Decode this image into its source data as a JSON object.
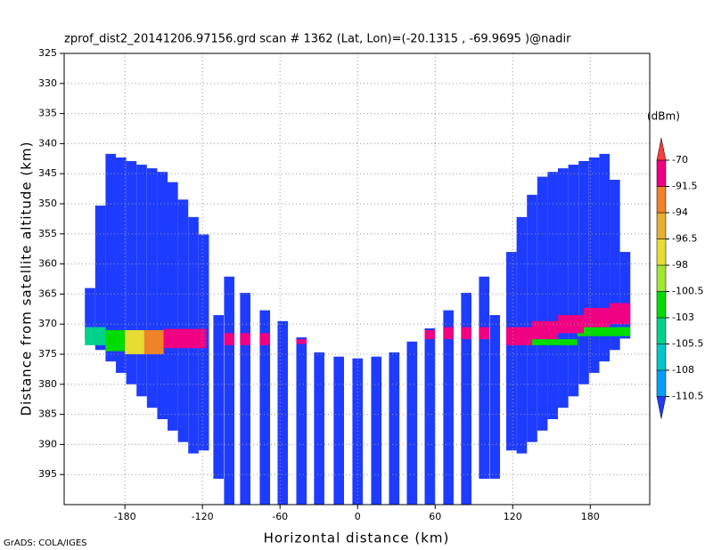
{
  "chart_data": {
    "type": "heatmap",
    "title": "zprof_dist2_20141206.97156.grd  scan # 1362  (Lat, Lon)=(-20.1315 , -69.9695 )@nadir",
    "x_label": "Horizontal distance (km)",
    "y_label": "Distance from satellite altitude (km)",
    "footer": "GrADS: COLA/IGES",
    "xlim": [
      -227,
      226
    ],
    "ylim": [
      400,
      325
    ],
    "xticks": [
      -180,
      -120,
      -60,
      0,
      60,
      120,
      180
    ],
    "yticks": [
      325,
      330,
      335,
      340,
      345,
      350,
      355,
      360,
      365,
      370,
      375,
      380,
      385,
      390,
      395
    ],
    "grid": true,
    "colorbar": {
      "label": "(dBm)",
      "levels": [
        -110.5,
        -108,
        -105.5,
        -103,
        -100.5,
        -98,
        -96.5,
        -94,
        -91.5,
        -70
      ],
      "colors": [
        "#1e3cff",
        "#00a0ff",
        "#00c8c8",
        "#00d28c",
        "#00dc00",
        "#a0e632",
        "#e6dc32",
        "#e6af2d",
        "#f08228",
        "#f00082",
        "#fa3c3c"
      ]
    },
    "columns": [
      {
        "x0": -211,
        "x1": -203,
        "top": 364,
        "bottom": 372.4,
        "value": -112
      },
      {
        "x0": -203,
        "x1": -195,
        "top": 350.3,
        "bottom": 374.3,
        "value": -112
      },
      {
        "x0": -195,
        "x1": -187,
        "top": 341.7,
        "bottom": 376.2,
        "value": -112
      },
      {
        "x0": -187,
        "x1": -179,
        "top": 342.3,
        "bottom": 378.1,
        "value": -112
      },
      {
        "x0": -179,
        "x1": -171,
        "top": 342.9,
        "bottom": 380,
        "value": -112
      },
      {
        "x0": -171,
        "x1": -163,
        "top": 343.5,
        "bottom": 382,
        "value": -112
      },
      {
        "x0": -163,
        "x1": -155,
        "top": 344.1,
        "bottom": 383.9,
        "value": -112
      },
      {
        "x0": -155,
        "x1": -147,
        "top": 344.7,
        "bottom": 385.8,
        "value": -112
      },
      {
        "x0": -147,
        "x1": -139,
        "top": 346.4,
        "bottom": 387.7,
        "value": -112
      },
      {
        "x0": -139,
        "x1": -131,
        "top": 349.3,
        "bottom": 389.6,
        "value": -112
      },
      {
        "x0": -131,
        "x1": -123,
        "top": 352.2,
        "bottom": 391.5,
        "value": -112
      },
      {
        "x0": -123,
        "x1": -115,
        "top": 355.1,
        "bottom": 391,
        "value": -112
      },
      {
        "x0": -111.6,
        "x1": -103.6,
        "top": 368.5,
        "bottom": 395.7,
        "value": -112
      },
      {
        "x0": -103.3,
        "x1": -95.3,
        "top": 362.1,
        "bottom": 400,
        "value": -112
      },
      {
        "x0": -90.9,
        "x1": -82.9,
        "top": 364.8,
        "bottom": 400,
        "value": -112
      },
      {
        "x0": -75.7,
        "x1": -67.7,
        "top": 367.7,
        "bottom": 400,
        "value": -112
      },
      {
        "x0": -61.9,
        "x1": -53.9,
        "top": 369.5,
        "bottom": 400,
        "value": -112
      },
      {
        "x0": -47.4,
        "x1": -39.4,
        "top": 372.2,
        "bottom": 400,
        "value": -112
      },
      {
        "x0": -33.7,
        "x1": -25.7,
        "top": 374.7,
        "bottom": 400,
        "value": -112
      },
      {
        "x0": -18.5,
        "x1": -10.5,
        "top": 375.4,
        "bottom": 400,
        "value": -112
      },
      {
        "x0": -4,
        "x1": 4,
        "top": 375.7,
        "bottom": 400,
        "value": -112
      },
      {
        "x0": 10.5,
        "x1": 18.5,
        "top": 375.4,
        "bottom": 400,
        "value": -112
      },
      {
        "x0": 24.3,
        "x1": 32.3,
        "top": 374.7,
        "bottom": 400,
        "value": -112
      },
      {
        "x0": 38.1,
        "x1": 46.1,
        "top": 372.9,
        "bottom": 400,
        "value": -112
      },
      {
        "x0": 51.9,
        "x1": 59.9,
        "top": 370.7,
        "bottom": 400,
        "value": -112
      },
      {
        "x0": 66.3,
        "x1": 74.3,
        "top": 367.7,
        "bottom": 400,
        "value": -112
      },
      {
        "x0": 80.1,
        "x1": 88.1,
        "top": 364.8,
        "bottom": 400,
        "value": -112
      },
      {
        "x0": 93.9,
        "x1": 101.9,
        "top": 362.1,
        "bottom": 395.7,
        "value": -112
      },
      {
        "x0": 102.2,
        "x1": 110.2,
        "top": 368.5,
        "bottom": 395.7,
        "value": -112
      },
      {
        "x0": 115,
        "x1": 123,
        "top": 358,
        "bottom": 391,
        "value": -112
      },
      {
        "x0": 123,
        "x1": 131,
        "top": 352.2,
        "bottom": 391.5,
        "value": -112
      },
      {
        "x0": 131,
        "x1": 139,
        "top": 348.5,
        "bottom": 389.6,
        "value": -112
      },
      {
        "x0": 139,
        "x1": 147,
        "top": 345.5,
        "bottom": 387.7,
        "value": -112
      },
      {
        "x0": 147,
        "x1": 155,
        "top": 344.7,
        "bottom": 385.8,
        "value": -112
      },
      {
        "x0": 155,
        "x1": 163,
        "top": 344.1,
        "bottom": 383.9,
        "value": -112
      },
      {
        "x0": 163,
        "x1": 171,
        "top": 343.5,
        "bottom": 382,
        "value": -112
      },
      {
        "x0": 171,
        "x1": 179,
        "top": 342.9,
        "bottom": 380,
        "value": -112
      },
      {
        "x0": 179,
        "x1": 187,
        "top": 342.3,
        "bottom": 378.1,
        "value": -112
      },
      {
        "x0": 187,
        "x1": 195,
        "top": 341.7,
        "bottom": 376.2,
        "value": -112
      },
      {
        "x0": 195,
        "x1": 203,
        "top": 346,
        "bottom": 374.3,
        "value": -112
      },
      {
        "x0": 203,
        "x1": 211,
        "top": 358,
        "bottom": 372.4,
        "value": -112
      }
    ],
    "bands": [
      {
        "x0": -211,
        "x1": -195,
        "top": 370.5,
        "bottom": 373.5,
        "value": -104
      },
      {
        "x0": -195,
        "x1": -180,
        "top": 371,
        "bottom": 374.5,
        "value": -101
      },
      {
        "x0": -180,
        "x1": -165,
        "top": 371,
        "bottom": 375,
        "value": -97
      },
      {
        "x0": -165,
        "x1": -150,
        "top": 371,
        "bottom": 375,
        "value": -93
      },
      {
        "x0": -150,
        "x1": -117,
        "top": 370.8,
        "bottom": 374,
        "value": -85
      },
      {
        "x0": -103.3,
        "x1": -95.3,
        "top": 371.5,
        "bottom": 373.5,
        "value": -85
      },
      {
        "x0": -90.9,
        "x1": -82.9,
        "top": 371.5,
        "bottom": 373.5,
        "value": -85
      },
      {
        "x0": -75.7,
        "x1": -67.7,
        "top": 371.5,
        "bottom": 373.5,
        "value": -88
      },
      {
        "x0": -47.4,
        "x1": -39.4,
        "top": 372.5,
        "bottom": 373.3,
        "value": -90
      },
      {
        "x0": 51.9,
        "x1": 59.9,
        "top": 371,
        "bottom": 372.5,
        "value": -85
      },
      {
        "x0": 66.3,
        "x1": 74.3,
        "top": 370.5,
        "bottom": 372.5,
        "value": -85
      },
      {
        "x0": 80.1,
        "x1": 88.1,
        "top": 370.5,
        "bottom": 372.5,
        "value": -85
      },
      {
        "x0": 93.9,
        "x1": 101.9,
        "top": 370.5,
        "bottom": 372.5,
        "value": -85
      },
      {
        "x0": 130,
        "x1": 170,
        "top": 372.5,
        "bottom": 373.5,
        "value": -101
      },
      {
        "x0": 170,
        "x1": 211,
        "top": 370.5,
        "bottom": 372,
        "value": -101
      },
      {
        "x0": 115,
        "x1": 135,
        "top": 370.5,
        "bottom": 373.5,
        "value": -85
      },
      {
        "x0": 135,
        "x1": 155,
        "top": 369.5,
        "bottom": 372.5,
        "value": -85
      },
      {
        "x0": 155,
        "x1": 175,
        "top": 368.5,
        "bottom": 371.5,
        "value": -85
      },
      {
        "x0": 175,
        "x1": 195,
        "top": 367.3,
        "bottom": 370.5,
        "value": -85
      },
      {
        "x0": 195,
        "x1": 211,
        "top": 366.5,
        "bottom": 370,
        "value": -85
      }
    ]
  }
}
